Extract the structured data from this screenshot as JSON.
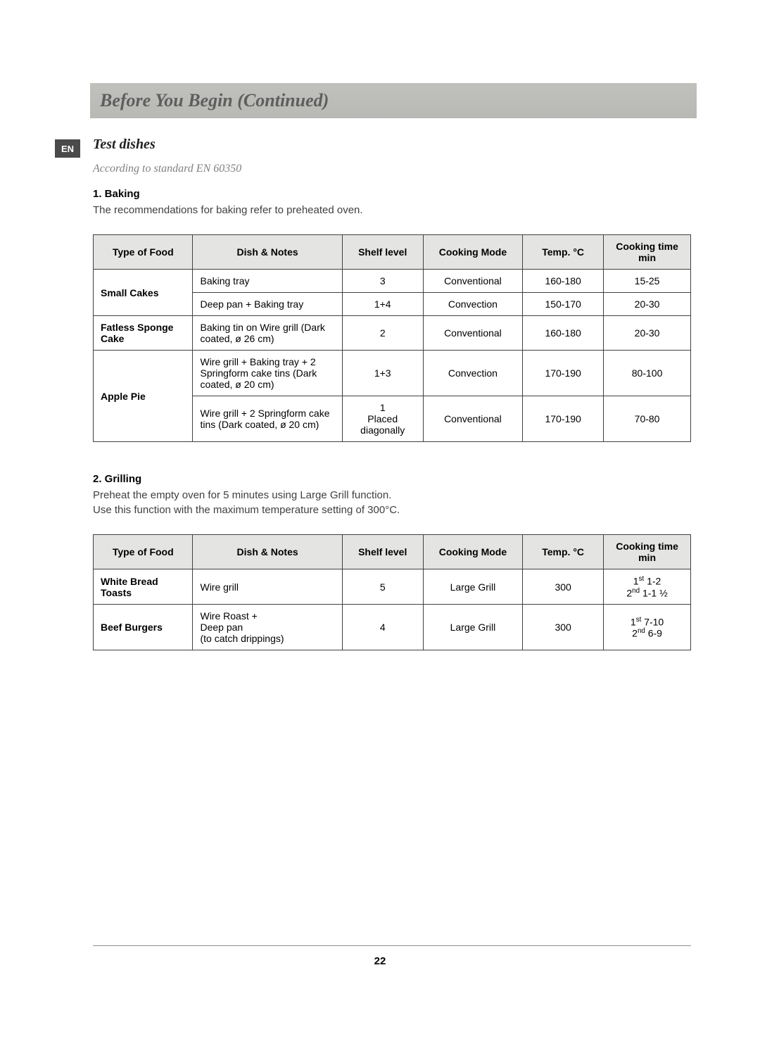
{
  "header": {
    "title": "Before You Begin (Continued)",
    "lang_badge": "EN"
  },
  "section": {
    "title": "Test dishes",
    "subtitle": "According to standard EN 60350"
  },
  "baking": {
    "heading": "1. Baking",
    "intro": "The recommendations for baking refer to preheated oven.",
    "columns": [
      "Type of Food",
      "Dish & Notes",
      "Shelf level",
      "Cooking Mode",
      "Temp. °C",
      "Cooking time min"
    ],
    "rows": [
      {
        "food": "Small Cakes",
        "rowspan": 2,
        "dish": "Baking tray",
        "shelf": "3",
        "mode": "Conventional",
        "temp": "160-180",
        "time": "15-25"
      },
      {
        "dish": "Deep pan + Baking tray",
        "shelf": "1+4",
        "mode": "Convection",
        "temp": "150-170",
        "time": "20-30"
      },
      {
        "food": "Fatless Sponge Cake",
        "rowspan": 1,
        "dish": "Baking tin on Wire grill (Dark coated, ø 26 cm)",
        "shelf": "2",
        "mode": "Conventional",
        "temp": "160-180",
        "time": "20-30"
      },
      {
        "food": "Apple Pie",
        "rowspan": 2,
        "dish": "Wire grill + Baking tray +  2 Springform cake tins (Dark coated, ø 20 cm)",
        "shelf": "1+3",
        "mode": "Convection",
        "temp": "170-190",
        "time": "80-100"
      },
      {
        "dish": "Wire grill + 2 Springform cake tins\n(Dark coated, ø 20 cm)",
        "shelf": "1\nPlaced diagonally",
        "mode": "Conventional",
        "temp": "170-190",
        "time": "70-80"
      }
    ]
  },
  "grilling": {
    "heading": "2. Grilling",
    "intro1": "Preheat the empty oven for 5 minutes using Large Grill function.",
    "intro2": "Use this function with the maximum temperature setting of 300°C.",
    "columns": [
      "Type of Food",
      "Dish & Notes",
      "Shelf level",
      "Cooking Mode",
      "Temp. °C",
      "Cooking time min"
    ],
    "rows": [
      {
        "food": "White Bread Toasts",
        "dish": "Wire grill",
        "shelf": "5",
        "mode": "Large Grill",
        "temp": "300",
        "time_a_sup": "st",
        "time_a_pre": "1",
        "time_a_val": " 1-2",
        "time_b_pre": "2",
        "time_b_sup": "nd",
        "time_b_val": " 1-1 ½"
      },
      {
        "food": "Beef Burgers",
        "dish": "Wire Roast +\nDeep pan\n(to catch drippings)",
        "shelf": "4",
        "mode": "Large Grill",
        "temp": "300",
        "time_a_sup": "st",
        "time_a_pre": "1",
        "time_a_val": " 7-10",
        "time_b_pre": "2",
        "time_b_sup": "nd",
        "time_b_val": " 6-9"
      }
    ]
  },
  "page_number": "22"
}
